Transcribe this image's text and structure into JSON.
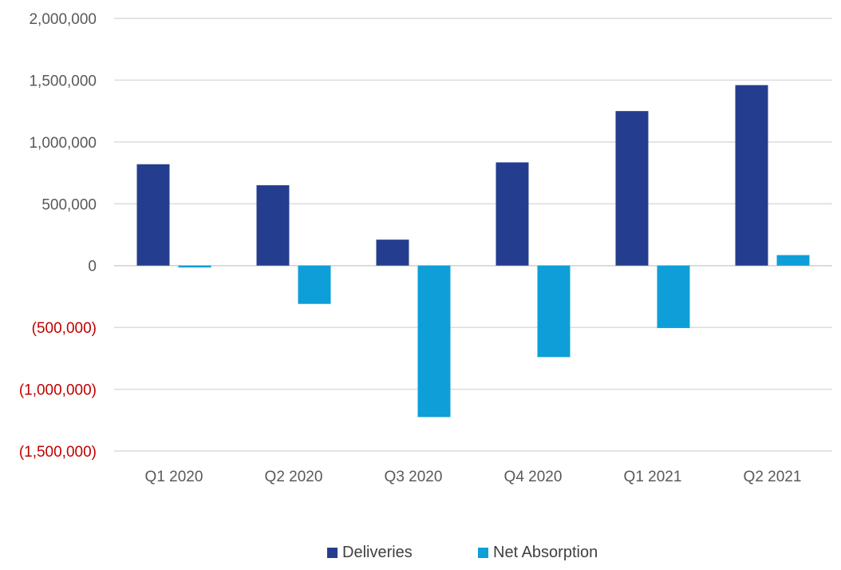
{
  "chart_data": {
    "type": "bar",
    "categories": [
      "Q1 2020",
      "Q2 2020",
      "Q3 2020",
      "Q4 2020",
      "Q1 2021",
      "Q2 2021"
    ],
    "series": [
      {
        "name": "Deliveries",
        "color": "#253d8e",
        "values": [
          820000,
          650000,
          210000,
          835000,
          1250000,
          1460000
        ]
      },
      {
        "name": "Net Absorption",
        "color": "#0e9fd8",
        "values": [
          -15000,
          -310000,
          -1225000,
          -740000,
          -505000,
          85000
        ]
      }
    ],
    "yticks": [
      {
        "value": 2000000,
        "label": "2,000,000"
      },
      {
        "value": 1500000,
        "label": "1,500,000"
      },
      {
        "value": 1000000,
        "label": "1,000,000"
      },
      {
        "value": 500000,
        "label": "500,000"
      },
      {
        "value": 0,
        "label": "0"
      },
      {
        "value": -500000,
        "label": "(500,000)"
      },
      {
        "value": -1000000,
        "label": "(1,000,000)"
      },
      {
        "value": -1500000,
        "label": "(1,500,000)"
      }
    ],
    "ylim": [
      -1500000,
      2000000
    ],
    "grid": true,
    "legend_position": "bottom",
    "negative_label_color": "#c00000"
  }
}
